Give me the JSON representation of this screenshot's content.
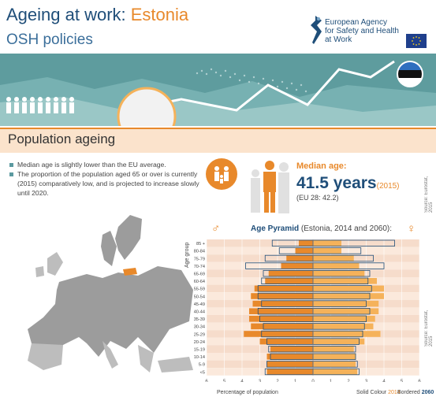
{
  "header": {
    "title_main": "Ageing at work: ",
    "title_country": "Estonia",
    "subtitle": "OSH policies",
    "agency_line1": "European Agency",
    "agency_line2": "for Safety and Health",
    "agency_line3": "at Work"
  },
  "section": {
    "title": "Population ageing"
  },
  "bullets": [
    "Median age is slightly lower than the EU average.",
    "The proportion of the population aged 65 or over is currently",
    "(2015) comparatively low, and is projected to increase slowly",
    "until 2020."
  ],
  "median": {
    "label": "Median age:",
    "value": "41.5 years",
    "year": "(2015)",
    "eu": "(EU 28: 42.2)",
    "source": "Source: Eurostat, 2015"
  },
  "pyramid": {
    "title_bold": "Age Pyramid",
    "title_rest": " (Estonia, 2014 and 2060):",
    "y_axis_label": "Age group",
    "x_axis_label": "Percentage of population",
    "legend_solid": "Solid Colour",
    "legend_solid_year": "2014",
    "legend_bordered": "Bordered",
    "legend_bordered_year": "2060",
    "source": "Source: Eurostat, 2015",
    "male_symbol": "♂",
    "female_symbol": "♀"
  },
  "colors": {
    "navy": "#1f4e79",
    "orange": "#e8892b",
    "light_orange": "#f5b25a",
    "teal": "#5b9aa0"
  },
  "chart_data": {
    "type": "bar",
    "categories": [
      "85 +",
      "80-84",
      "75-79",
      "70-74",
      "65-69",
      "60-64",
      "55-59",
      "50-54",
      "45-49",
      "40-44",
      "35-39",
      "30-34",
      "25-29",
      "20-24",
      "15-19",
      "10-14",
      "5-9",
      "<5"
    ],
    "x_ticks": [
      "6",
      "5",
      "4",
      "3",
      "2",
      "1",
      "0",
      "1",
      "2",
      "3",
      "4",
      "5",
      "6"
    ],
    "xlim": [
      -6,
      6
    ],
    "series": [
      {
        "name": "Male 2014",
        "values": [
          -0.8,
          -1.0,
          -1.5,
          -1.8,
          -2.5,
          -2.7,
          -3.3,
          -3.5,
          -3.4,
          -3.6,
          -3.6,
          -3.5,
          -3.9,
          -3.0,
          -2.4,
          -2.6,
          -2.6,
          -2.6
        ]
      },
      {
        "name": "Female 2014",
        "values": [
          1.6,
          1.6,
          2.3,
          2.6,
          2.9,
          3.6,
          4.0,
          4.0,
          3.7,
          3.7,
          3.5,
          3.4,
          3.8,
          2.9,
          2.3,
          2.4,
          2.4,
          2.5
        ]
      },
      {
        "name": "Male 2060",
        "values": [
          -2.3,
          -1.9,
          -2.7,
          -3.8,
          -2.8,
          -2.9,
          -3.1,
          -3.1,
          -2.9,
          -3.1,
          -3.0,
          -2.8,
          -2.9,
          -2.6,
          -2.5,
          -2.4,
          -2.6,
          -2.7
        ]
      },
      {
        "name": "Female 2060",
        "values": [
          4.6,
          2.7,
          3.4,
          4.0,
          3.2,
          3.1,
          3.3,
          3.2,
          3.0,
          3.2,
          3.0,
          2.9,
          2.8,
          2.6,
          2.4,
          2.4,
          2.5,
          2.6
        ]
      }
    ]
  }
}
